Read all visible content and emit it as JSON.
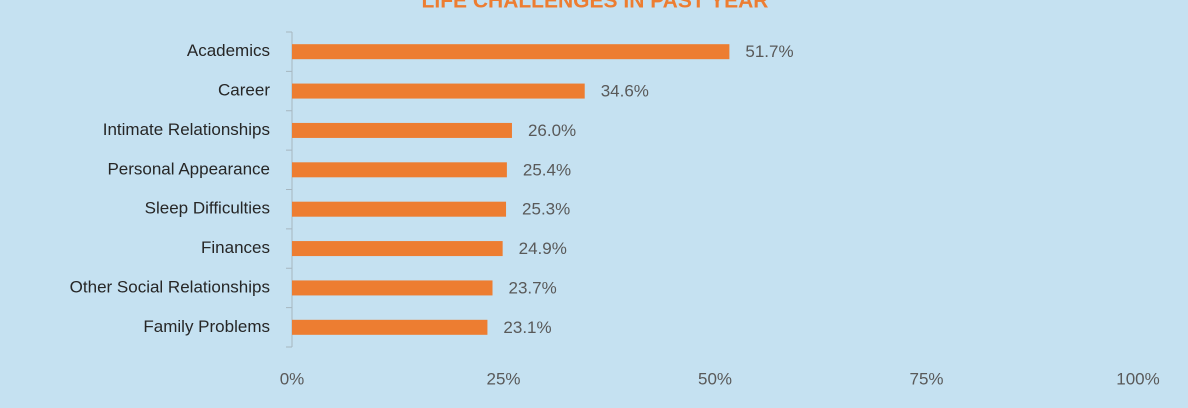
{
  "chart_data": {
    "type": "bar",
    "orientation": "horizontal",
    "title": "LIFE CHALLENGES IN PAST YEAR",
    "categories": [
      "Academics",
      "Career",
      "Intimate Relationships",
      "Personal Appearance",
      "Sleep Difficulties",
      "Finances",
      "Other Social Relationships",
      "Family Problems"
    ],
    "values": [
      51.7,
      34.6,
      26.0,
      25.4,
      25.3,
      24.9,
      23.7,
      23.1
    ],
    "value_labels": [
      "51.7%",
      "34.6%",
      "26.0%",
      "25.4%",
      "25.3%",
      "24.9%",
      "23.7%",
      "23.1%"
    ],
    "color": "#ed7d31",
    "xlim": [
      0,
      100
    ],
    "xticks": [
      {
        "value": 0,
        "label": "0%"
      },
      {
        "value": 25,
        "label": "25%"
      },
      {
        "value": 50,
        "label": "50%"
      },
      {
        "value": 75,
        "label": "75%"
      },
      {
        "value": 100,
        "label": "100%"
      }
    ],
    "grid": false
  }
}
